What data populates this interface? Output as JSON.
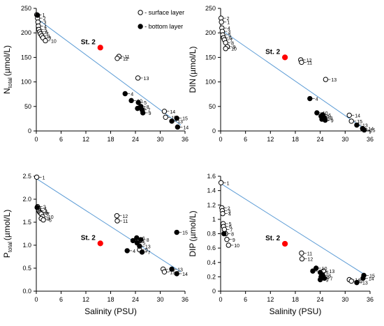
{
  "chart_data": [
    {
      "type": "scatter",
      "ylabel_main": "N",
      "ylabel_sub": "total",
      "ylabel_tail": "(µmol/L)",
      "xlabel": "",
      "xlim": [
        0,
        36
      ],
      "ylim": [
        0,
        250
      ],
      "xticks": [
        0,
        6,
        12,
        18,
        24,
        30,
        36
      ],
      "yticks": [
        0,
        50,
        100,
        150,
        200,
        250
      ],
      "legend": {
        "position": "top-right",
        "items": [
          "- surface layer",
          "- bottom layer"
        ]
      },
      "station_label": "St. 2",
      "station_point": {
        "x": 15.5,
        "y": 170
      },
      "trendline": {
        "x": [
          0,
          35
        ],
        "y": [
          230,
          12
        ]
      },
      "series": [
        {
          "layer": "surface",
          "points": [
            {
              "x": 0.1,
              "y": 237,
              "label": "1"
            },
            {
              "x": 0.3,
              "y": 230,
              "label": "2"
            },
            {
              "x": 0.4,
              "y": 222,
              "label": "3"
            },
            {
              "x": 0.5,
              "y": 214,
              "label": "4"
            },
            {
              "x": 0.6,
              "y": 207,
              "label": "5"
            },
            {
              "x": 0.8,
              "y": 202,
              "label": "6"
            },
            {
              "x": 1.0,
              "y": 198,
              "label": "7"
            },
            {
              "x": 1.3,
              "y": 194,
              "label": "8"
            },
            {
              "x": 1.6,
              "y": 190,
              "label": "9"
            },
            {
              "x": 2.2,
              "y": 184,
              "label": "10"
            },
            {
              "x": 20.0,
              "y": 152,
              "label": "11"
            },
            {
              "x": 19.6,
              "y": 148,
              "label": "12"
            },
            {
              "x": 24.6,
              "y": 108,
              "label": "13"
            },
            {
              "x": 31.0,
              "y": 40,
              "label": "14"
            },
            {
              "x": 31.3,
              "y": 28,
              "label": "15"
            }
          ]
        },
        {
          "layer": "bottom",
          "points": [
            {
              "x": 0.3,
              "y": 236,
              "label": ""
            },
            {
              "x": 21.5,
              "y": 76,
              "label": "4"
            },
            {
              "x": 23.0,
              "y": 62,
              "label": "10"
            },
            {
              "x": 24.7,
              "y": 58,
              "label": "5"
            },
            {
              "x": 25.3,
              "y": 50,
              "label": "8"
            },
            {
              "x": 24.5,
              "y": 46,
              "label": "6"
            },
            {
              "x": 25.6,
              "y": 43,
              "label": "7"
            },
            {
              "x": 25.8,
              "y": 37,
              "label": "9"
            },
            {
              "x": 34.0,
              "y": 26,
              "label": "15"
            },
            {
              "x": 32.8,
              "y": 20,
              "label": "13"
            },
            {
              "x": 34.2,
              "y": 8,
              "label": "14"
            }
          ]
        }
      ]
    },
    {
      "type": "scatter",
      "ylabel_main": "DIN",
      "ylabel_sub": "",
      "ylabel_tail": "(µmol/L)",
      "xlabel": "",
      "xlim": [
        0,
        36
      ],
      "ylim": [
        0,
        250
      ],
      "xticks": [
        0,
        6,
        12,
        18,
        24,
        30,
        36
      ],
      "yticks": [
        0,
        50,
        100,
        150,
        200,
        250
      ],
      "station_label": "St. 2",
      "station_point": {
        "x": 15.5,
        "y": 150
      },
      "trendline": {
        "x": [
          0,
          35
        ],
        "y": [
          207,
          2
        ]
      },
      "series": [
        {
          "layer": "surface",
          "points": [
            {
              "x": 0.1,
              "y": 230,
              "label": "2"
            },
            {
              "x": 0.2,
              "y": 222,
              "label": "1"
            },
            {
              "x": 0.3,
              "y": 210,
              "label": "4"
            },
            {
              "x": 0.4,
              "y": 203,
              "label": "3"
            },
            {
              "x": 0.5,
              "y": 196,
              "label": "5"
            },
            {
              "x": 0.7,
              "y": 190,
              "label": "6"
            },
            {
              "x": 0.9,
              "y": 186,
              "label": "7"
            },
            {
              "x": 1.2,
              "y": 180,
              "label": "8"
            },
            {
              "x": 1.6,
              "y": 172,
              "label": "9"
            },
            {
              "x": 1.2,
              "y": 168,
              "label": "10"
            },
            {
              "x": 19.3,
              "y": 145,
              "label": "12"
            },
            {
              "x": 19.5,
              "y": 140,
              "label": "11"
            },
            {
              "x": 25.3,
              "y": 105,
              "label": "13"
            },
            {
              "x": 31.0,
              "y": 32,
              "label": "14"
            },
            {
              "x": 31.5,
              "y": 20,
              "label": "15"
            }
          ]
        },
        {
          "layer": "bottom",
          "points": [
            {
              "x": 21.5,
              "y": 66,
              "label": "4"
            },
            {
              "x": 23.2,
              "y": 37,
              "label": "10"
            },
            {
              "x": 24.6,
              "y": 33,
              "label": "6"
            },
            {
              "x": 24.2,
              "y": 30,
              "label": "5"
            },
            {
              "x": 25.0,
              "y": 27,
              "label": "8"
            },
            {
              "x": 24.4,
              "y": 24,
              "label": "7"
            },
            {
              "x": 25.2,
              "y": 22,
              "label": "9"
            },
            {
              "x": 32.8,
              "y": 12,
              "label": "13"
            },
            {
              "x": 34.2,
              "y": 5,
              "label": "14"
            },
            {
              "x": 34.6,
              "y": 2,
              "label": "15"
            }
          ]
        }
      ]
    },
    {
      "type": "scatter",
      "ylabel_main": "P",
      "ylabel_sub": "total",
      "ylabel_tail": "(µmol/L)",
      "xlabel": "Salinity (PSU)",
      "xlim": [
        0,
        36
      ],
      "ylim": [
        0,
        2.5
      ],
      "xticks": [
        0,
        6,
        12,
        18,
        24,
        30,
        36
      ],
      "yticks": [
        0,
        0.5,
        1.0,
        1.5,
        2.0,
        2.5
      ],
      "ytick_labels": [
        "0.0",
        "0.5",
        "1.0",
        "1.5",
        "2.0",
        "2.5"
      ],
      "station_label": "St. 2",
      "station_point": {
        "x": 15.5,
        "y": 1.04
      },
      "trendline": {
        "x": [
          0,
          35
        ],
        "y": [
          2.45,
          0.42
        ]
      },
      "series": [
        {
          "layer": "surface",
          "points": [
            {
              "x": 0.1,
              "y": 2.48,
              "label": "1"
            },
            {
              "x": 0.3,
              "y": 1.84,
              "label": "2"
            },
            {
              "x": 0.5,
              "y": 1.8,
              "label": "4"
            },
            {
              "x": 0.6,
              "y": 1.75,
              "label": "3"
            },
            {
              "x": 0.8,
              "y": 1.72,
              "label": "5"
            },
            {
              "x": 1.0,
              "y": 1.7,
              "label": "8"
            },
            {
              "x": 1.2,
              "y": 1.68,
              "label": "7"
            },
            {
              "x": 1.5,
              "y": 1.62,
              "label": "10"
            },
            {
              "x": 1.2,
              "y": 1.58,
              "label": "9"
            },
            {
              "x": 1.7,
              "y": 1.55,
              "label": "6"
            },
            {
              "x": 19.5,
              "y": 1.64,
              "label": "12"
            },
            {
              "x": 19.6,
              "y": 1.53,
              "label": "11"
            },
            {
              "x": 25.0,
              "y": 0.9,
              "label": "9"
            },
            {
              "x": 30.7,
              "y": 0.48,
              "label": "14"
            },
            {
              "x": 31.0,
              "y": 0.42,
              "label": "15"
            }
          ]
        },
        {
          "layer": "bottom",
          "points": [
            {
              "x": 0.2,
              "y": 1.82,
              "label": ""
            },
            {
              "x": 22.0,
              "y": 0.88,
              "label": "4"
            },
            {
              "x": 23.4,
              "y": 1.1,
              "label": "10"
            },
            {
              "x": 24.3,
              "y": 1.16,
              "label": "6"
            },
            {
              "x": 25.3,
              "y": 1.12,
              "label": "8"
            },
            {
              "x": 24.4,
              "y": 1.05,
              "label": "5"
            },
            {
              "x": 25.0,
              "y": 0.98,
              "label": "13"
            },
            {
              "x": 25.6,
              "y": 0.85,
              "label": "7"
            },
            {
              "x": 34.0,
              "y": 1.28,
              "label": "15"
            },
            {
              "x": 32.8,
              "y": 0.48,
              "label": "13"
            },
            {
              "x": 34.0,
              "y": 0.38,
              "label": "14"
            }
          ]
        }
      ]
    },
    {
      "type": "scatter",
      "ylabel_main": "DIP",
      "ylabel_sub": "",
      "ylabel_tail": "(µmol/L)",
      "xlabel": "Salinity (PSU)",
      "xlim": [
        0,
        36
      ],
      "ylim": [
        0,
        1.6
      ],
      "xticks": [
        0,
        6,
        12,
        18,
        24,
        30,
        36
      ],
      "yticks": [
        0,
        0.2,
        0.4,
        0.6,
        0.8,
        1.0,
        1.2,
        1.4,
        1.6
      ],
      "ytick_labels": [
        "0",
        "0.2",
        "0.4",
        "0.6",
        "0.8",
        "1",
        "1.2",
        "1.4",
        "1.6"
      ],
      "station_label": "St. 2",
      "station_point": {
        "x": 15.5,
        "y": 0.66
      },
      "trendline": {
        "x": [
          0,
          35
        ],
        "y": [
          1.5,
          0.22
        ]
      },
      "series": [
        {
          "layer": "surface",
          "points": [
            {
              "x": 0.1,
              "y": 1.51,
              "label": "1"
            },
            {
              "x": 0.3,
              "y": 1.16,
              "label": "2"
            },
            {
              "x": 0.4,
              "y": 1.12,
              "label": "3"
            },
            {
              "x": 0.5,
              "y": 1.08,
              "label": "4"
            },
            {
              "x": 0.6,
              "y": 0.94,
              "label": "5"
            },
            {
              "x": 0.7,
              "y": 0.9,
              "label": "6"
            },
            {
              "x": 0.9,
              "y": 0.86,
              "label": "7"
            },
            {
              "x": 1.2,
              "y": 0.8,
              "label": "8"
            },
            {
              "x": 1.5,
              "y": 0.72,
              "label": "9"
            },
            {
              "x": 1.9,
              "y": 0.64,
              "label": "10"
            },
            {
              "x": 19.5,
              "y": 0.53,
              "label": "11"
            },
            {
              "x": 19.6,
              "y": 0.45,
              "label": "12"
            },
            {
              "x": 24.8,
              "y": 0.28,
              "label": "13"
            },
            {
              "x": 31.0,
              "y": 0.16,
              "label": "14"
            },
            {
              "x": 31.5,
              "y": 0.14,
              "label": "15"
            }
          ]
        },
        {
          "layer": "bottom",
          "points": [
            {
              "x": 0.8,
              "y": 0.8,
              "label": ""
            },
            {
              "x": 22.2,
              "y": 0.28,
              "label": "4"
            },
            {
              "x": 23.0,
              "y": 0.32,
              "label": "10"
            },
            {
              "x": 24.0,
              "y": 0.26,
              "label": "5"
            },
            {
              "x": 24.6,
              "y": 0.22,
              "label": "8"
            },
            {
              "x": 24.2,
              "y": 0.2,
              "label": "6"
            },
            {
              "x": 25.0,
              "y": 0.18,
              "label": "7"
            },
            {
              "x": 24.0,
              "y": 0.16,
              "label": "9"
            },
            {
              "x": 34.5,
              "y": 0.22,
              "label": "15"
            },
            {
              "x": 34.3,
              "y": 0.18,
              "label": "14"
            },
            {
              "x": 32.8,
              "y": 0.12,
              "label": "13"
            }
          ]
        }
      ]
    }
  ],
  "colors": {
    "trendline": "#5b9bd5",
    "station": "#ff0000",
    "marker": "#000000",
    "axis": "#000000"
  }
}
